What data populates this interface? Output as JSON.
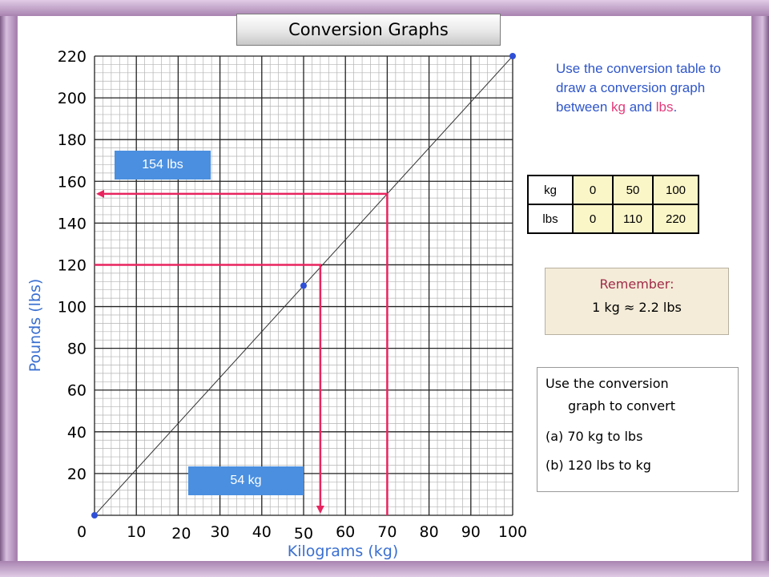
{
  "title": "Conversion Graphs",
  "instructions": {
    "part1": "Use the conversion table to draw a conversion graph between ",
    "kg": "kg",
    "and": " and ",
    "lbs": "lbs",
    "end": "."
  },
  "table": {
    "row1_label": "kg",
    "row1_values": [
      "0",
      "50",
      "100"
    ],
    "row2_label": "lbs",
    "row2_values": [
      "0",
      "110",
      "220"
    ]
  },
  "remember": {
    "heading": "Remember:",
    "fact": "1 kg ≈ 2.2 lbs"
  },
  "task": {
    "line1": "Use the conversion",
    "line2": "graph to convert",
    "item_a": "(a) 70 kg to lbs",
    "item_b": "(b) 120 lbs to kg"
  },
  "answers": {
    "lbs_answer": "154 lbs",
    "kg_answer": "54 kg"
  },
  "colors": {
    "axis_label": "#3a6fd1",
    "guide_line": "#e8245f",
    "point": "#2f4fd6",
    "answer_box": "#4a8fe0"
  },
  "chart_data": {
    "type": "line",
    "xlabel": "Kilograms (kg)",
    "ylabel": "Pounds (lbs)",
    "xlim": [
      0,
      100
    ],
    "ylim": [
      0,
      220
    ],
    "x_ticks": [
      0,
      10,
      20,
      30,
      40,
      50,
      60,
      70,
      80,
      90,
      100
    ],
    "y_ticks": [
      20,
      40,
      60,
      80,
      100,
      120,
      140,
      160,
      180,
      200,
      220
    ],
    "grid": true,
    "series": [
      {
        "x": [
          0,
          100
        ],
        "y": [
          0,
          220
        ]
      }
    ],
    "points": [
      {
        "x": 0,
        "y": 0
      },
      {
        "x": 50,
        "y": 110
      },
      {
        "x": 100,
        "y": 220
      }
    ],
    "guides": [
      {
        "from_x": 70,
        "to_y": 154
      },
      {
        "from_y": 120,
        "to_x": 54
      }
    ]
  }
}
